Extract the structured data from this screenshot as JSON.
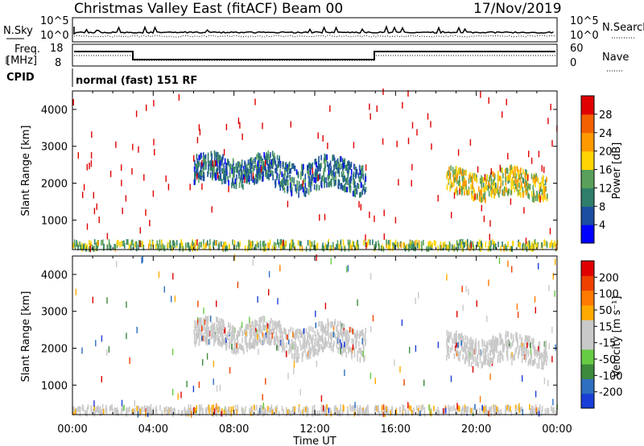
{
  "header": {
    "radar": "Christmas Valley East (fitACF)",
    "beam": "Beam 00",
    "date": "17/Nov/2019"
  },
  "status": {
    "nsky_label": "N.Sky",
    "nsearch_label": "N.Search",
    "nsky_ticks": [
      "10^5",
      "10^0"
    ],
    "nsky_ticks_right": [
      "10^5",
      "10^0"
    ],
    "freq_label": "Freq.",
    "freq_unit": "[MHz]",
    "freq_ticks": [
      "18",
      "8"
    ],
    "nave_label": "Nave",
    "nave_ticks": [
      "60",
      "0"
    ],
    "cpid_label": "CPID",
    "cpid_text": "normal (fast) 151 RF"
  },
  "colors": {
    "power_scale": [
      "#0000ff",
      "#1b4ea0",
      "#2f7e6b",
      "#5aa05a",
      "#ffd400",
      "#ff9900",
      "#f26000",
      "#e00000"
    ],
    "velocity_scale": [
      "#1a3ed8",
      "#2e6fc0",
      "#3c8a3c",
      "#66cc44",
      "#c9c9c9",
      "#c9c9c9",
      "#ffaa00",
      "#ff7a00",
      "#f04000",
      "#e00000"
    ]
  },
  "chart_data": [
    {
      "type": "heatmap",
      "title": "Power",
      "xlabel": "",
      "ylabel": "Slant Range [km]",
      "xlim": [
        "00:00",
        "24:00"
      ],
      "ylim": [
        200,
        4500
      ],
      "yticks": [
        1000,
        2000,
        3000,
        4000
      ],
      "colorbar": {
        "label": "Power [dB]",
        "ticks": [
          "4",
          "8",
          "12",
          "16",
          "20",
          "24",
          "28"
        ],
        "range": [
          0,
          30
        ]
      },
      "features": [
        {
          "time_start_h": 6.0,
          "time_end_h": 10.0,
          "range_km": [
            2000,
            2700
          ],
          "power_db": 8
        },
        {
          "time_start_h": 10.0,
          "time_end_h": 14.5,
          "range_km": [
            1800,
            2600
          ],
          "power_db": 8
        },
        {
          "time_start_h": 18.5,
          "time_end_h": 23.5,
          "range_km": [
            1600,
            2300
          ],
          "power_db": 16
        },
        {
          "time_start_h": 0.0,
          "time_end_h": 24.0,
          "range_km": [
            200,
            400
          ],
          "power_db": 14
        }
      ]
    },
    {
      "type": "heatmap",
      "title": "Velocity",
      "xlabel": "Time UT",
      "ylabel": "Slant Range [km]",
      "xlim": [
        "00:00",
        "24:00"
      ],
      "xticks": [
        "00:00",
        "04:00",
        "08:00",
        "12:00",
        "16:00",
        "20:00",
        "00:00"
      ],
      "ylim": [
        200,
        4500
      ],
      "yticks": [
        1000,
        2000,
        3000,
        4000
      ],
      "colorbar": {
        "label": "Velocity [m s⁻¹]",
        "ticks": [
          "200",
          "100",
          "50",
          "15",
          "-15",
          "-50",
          "-100",
          "-200"
        ],
        "range": [
          -250,
          250
        ]
      },
      "features": [
        {
          "time_start_h": 6.0,
          "time_end_h": 10.0,
          "range_km": [
            2000,
            2700
          ],
          "velocity_ms": 0
        },
        {
          "time_start_h": 10.0,
          "time_end_h": 14.5,
          "range_km": [
            1800,
            2600
          ],
          "velocity_ms": 0
        },
        {
          "time_start_h": 18.5,
          "time_end_h": 23.5,
          "range_km": [
            1600,
            2300
          ],
          "velocity_ms": 0
        },
        {
          "time_start_h": 0.0,
          "time_end_h": 24.0,
          "range_km": [
            200,
            400
          ],
          "velocity_ms": -30
        }
      ]
    }
  ]
}
